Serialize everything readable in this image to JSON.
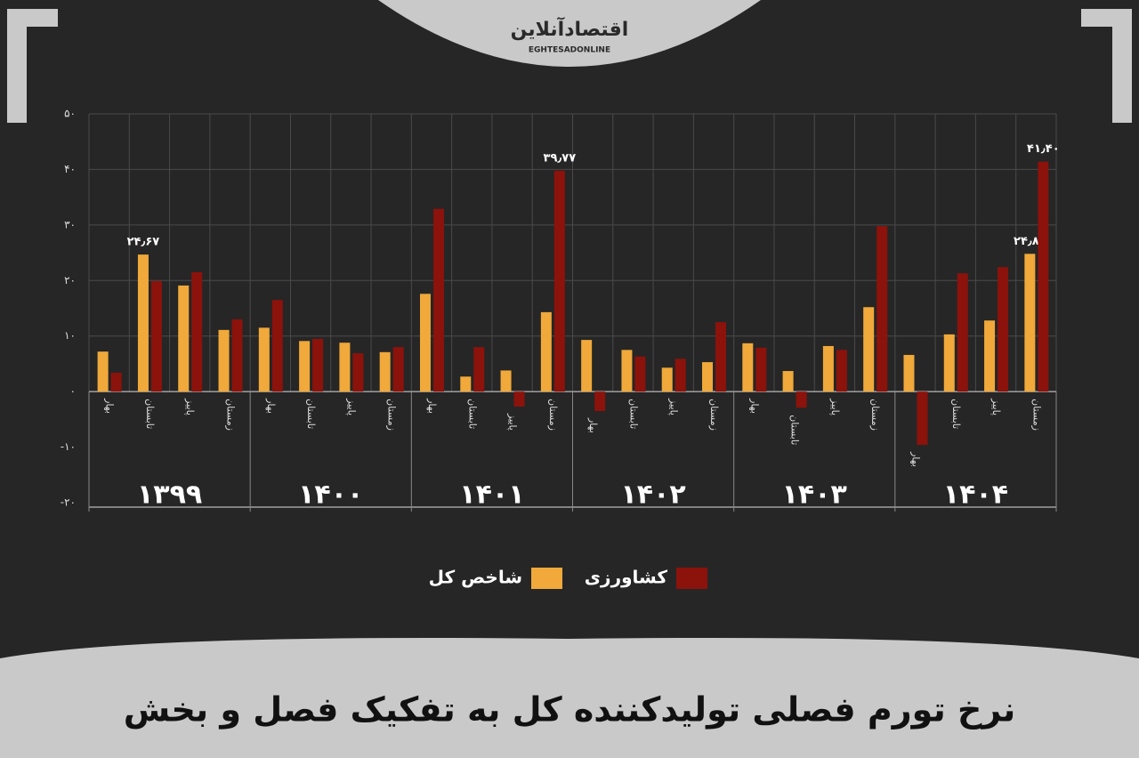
{
  "brand": {
    "name": "اقتصادآنلاین",
    "latin": "EGHTESADONLINE"
  },
  "chart_data": {
    "type": "bar",
    "title": "نرخ تورم فصلی تولیدکننده کل به تفکیک فصل و بخش",
    "groups": [
      "۱۳۹۹",
      "۱۴۰۰",
      "۱۴۰۱",
      "۱۴۰۲",
      "۱۴۰۳",
      "۱۴۰۴"
    ],
    "categories": [
      "بهار",
      "تابستان",
      "پاییز",
      "زمستان",
      "بهار",
      "تابستان",
      "پاییز",
      "زمستان",
      "بهار",
      "تابستان",
      "پاییز",
      "زمستان",
      "بهار",
      "تابستان",
      "پاییز",
      "زمستان",
      "بهار",
      "تابستان",
      "پاییز",
      "زمستان",
      "بهار",
      "تابستان",
      "پاییز",
      "زمستان"
    ],
    "series": [
      {
        "name": "شاخص کل",
        "color": "#f0a93a",
        "values": [
          7.2,
          24.67,
          19.1,
          11.1,
          11.5,
          9.1,
          8.8,
          7.1,
          17.6,
          2.7,
          3.8,
          14.3,
          9.3,
          7.5,
          4.3,
          5.3,
          8.7,
          3.7,
          8.2,
          15.2,
          6.6,
          10.3,
          12.8,
          24.8
        ],
        "value_labels": [
          null,
          "۲۴٫۶۷",
          null,
          null,
          null,
          null,
          null,
          null,
          null,
          null,
          null,
          null,
          null,
          null,
          null,
          null,
          null,
          null,
          null,
          null,
          null,
          null,
          null,
          "۲۴٫۸۰"
        ]
      },
      {
        "name": "کشاورزی",
        "color": "#8c120c",
        "values": [
          3.4,
          19.9,
          21.5,
          13.0,
          16.5,
          9.5,
          6.9,
          8.0,
          32.9,
          8.0,
          -2.7,
          39.77,
          -3.5,
          6.3,
          5.9,
          12.5,
          7.9,
          -2.9,
          7.5,
          29.8,
          -9.6,
          21.3,
          22.4,
          41.4
        ],
        "value_labels": [
          null,
          null,
          null,
          null,
          null,
          null,
          null,
          null,
          null,
          null,
          null,
          "۳۹٫۷۷",
          null,
          null,
          null,
          null,
          null,
          null,
          null,
          null,
          null,
          null,
          null,
          "۴۱٫۴۰"
        ]
      }
    ],
    "ylim": [
      -20,
      50
    ],
    "yticks": [
      {
        "value": -20,
        "label": "-۲۰"
      },
      {
        "value": -10,
        "label": "-۱۰"
      },
      {
        "value": 0,
        "label": "۰"
      },
      {
        "value": 10,
        "label": "۱۰"
      },
      {
        "value": 20,
        "label": "۲۰"
      },
      {
        "value": 30,
        "label": "۳۰"
      },
      {
        "value": 40,
        "label": "۴۰"
      },
      {
        "value": 50,
        "label": "۵۰"
      }
    ],
    "grid": true
  }
}
